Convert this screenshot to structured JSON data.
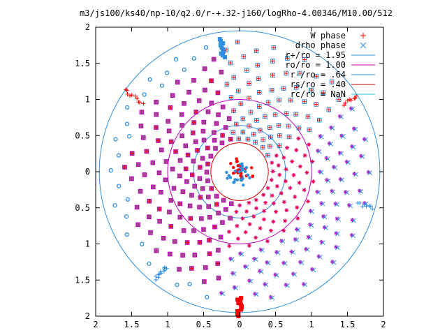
{
  "chart_data": {
    "type": "scatter",
    "title": "m3/js100/ks40/np-10/q2.0/r-+.32-j160/logRho-4.00346/M10.00/512",
    "xlabel": "",
    "ylabel": "",
    "xlim": [
      -2,
      2
    ],
    "ylim": [
      -2,
      2
    ],
    "x_tick_labels": [
      "2",
      "1.5",
      "1",
      "0.5",
      "0",
      "0.5",
      "1",
      "1.5",
      "2"
    ],
    "y_tick_labels": [
      "2",
      "1.5",
      "1",
      "0.5",
      "0",
      "0.5",
      "1",
      "1.5",
      "2"
    ],
    "grid": false,
    "legend_position": "top-right",
    "series": [
      {
        "name": "W phase",
        "marker": "plus",
        "color": "#ff0000"
      },
      {
        "name": "drho phase",
        "marker": "x",
        "color": "#2f8fdf"
      }
    ],
    "circles": [
      {
        "name": "r+/ro = 1.95",
        "radius": 1.95,
        "color": "#2f8fdf"
      },
      {
        "name": "ro/ro = 1.00",
        "radius": 1.0,
        "color": "#c000c0"
      },
      {
        "name": "r-/ro = .64",
        "radius": 0.64,
        "color": "#2f8fdf"
      },
      {
        "name": "rs/ro = .40",
        "radius": 0.4,
        "color": "#d00000"
      },
      {
        "name": "rc/ro = NaN",
        "radius": null,
        "color": "#30c0d0"
      }
    ],
    "colors": {
      "red": "#ff0000",
      "blue": "#2f8fdf",
      "magenta": "#c000c0",
      "cyan": "#30c0d0",
      "darkred": "#d00000"
    }
  }
}
